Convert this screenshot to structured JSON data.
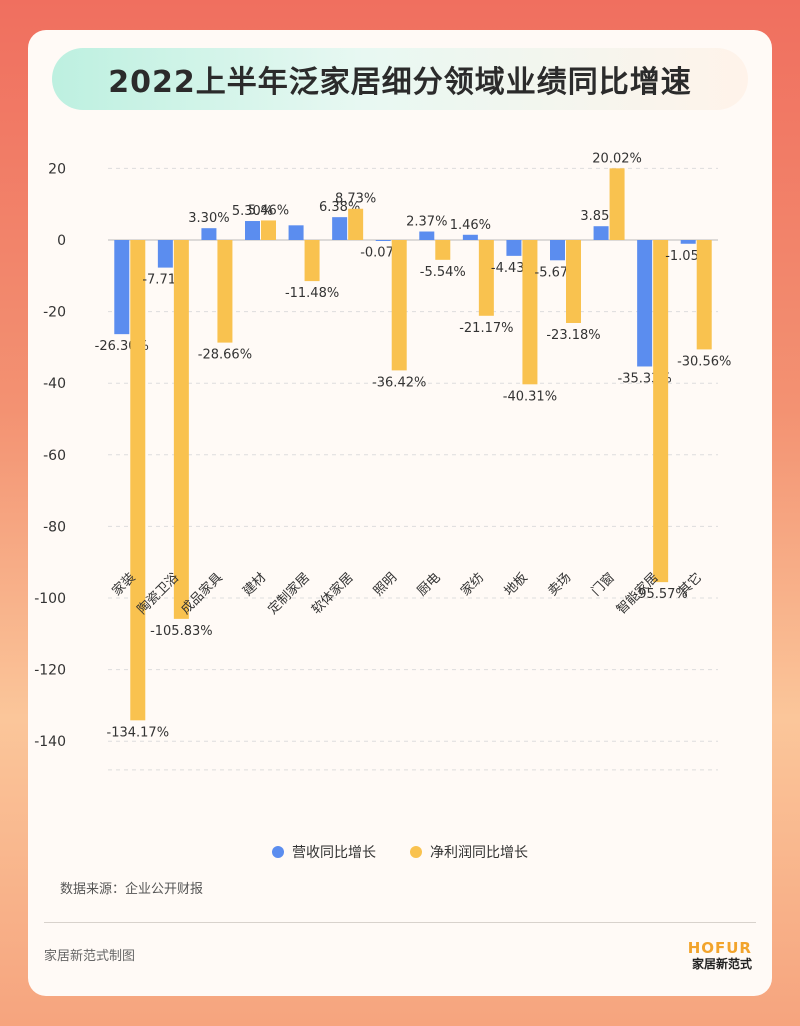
{
  "title": "2022上半年泛家居细分领域业绩同比增速",
  "colors": {
    "revenue": "#5b8def",
    "profit": "#f9c24f",
    "axis_text": "#333333",
    "grid": "#dddddd"
  },
  "chart_data": {
    "type": "bar",
    "title": "2022上半年泛家居细分领域业绩同比增速",
    "categories": [
      "家装",
      "陶瓷卫浴",
      "成品家具",
      "建材",
      "定制家居",
      "软体家居",
      "照明",
      "厨电",
      "家纺",
      "地板",
      "卖场",
      "门窗",
      "智能家居",
      "其它"
    ],
    "series": [
      {
        "name": "营收同比增长",
        "values": [
          -26.3,
          -7.71,
          3.3,
          5.3,
          4.1,
          6.38,
          -0.07,
          2.37,
          1.46,
          -4.43,
          -5.67,
          3.85,
          -35.33,
          -1.05
        ],
        "labels": [
          "-26.30%",
          "-7.71%",
          "3.30%",
          "5.30%",
          "",
          "6.38%",
          "-0.07%",
          "2.37%",
          "1.46%",
          "-4.43%",
          "-5.67%",
          "3.85%",
          "-35.33%",
          "-1.05%"
        ]
      },
      {
        "name": "净利润同比增长",
        "values": [
          -134.17,
          -105.83,
          -28.66,
          5.46,
          -11.48,
          8.73,
          -36.42,
          -5.54,
          -21.17,
          -40.31,
          -23.18,
          20.02,
          -95.57,
          -30.56
        ],
        "labels": [
          "-134.17%",
          "-105.83%",
          "-28.66%",
          "5.46%",
          "-11.48%",
          "8.73%",
          "-36.42%",
          "-5.54%",
          "-21.17%",
          "-40.31%",
          "-23.18%",
          "20.02%",
          "-95.57%",
          "-30.56%"
        ]
      }
    ],
    "y_ticks": [
      20,
      0,
      -20,
      -40,
      -60,
      -80,
      -100,
      -120,
      -140
    ],
    "ylim": [
      -148,
      22
    ],
    "grid": true,
    "legend_position": "bottom"
  },
  "source": "数据来源：企业公开财报",
  "footer": {
    "credit": "家居新范式制图",
    "brand_en": "HOFUR",
    "brand_cn": "家居新范式"
  }
}
